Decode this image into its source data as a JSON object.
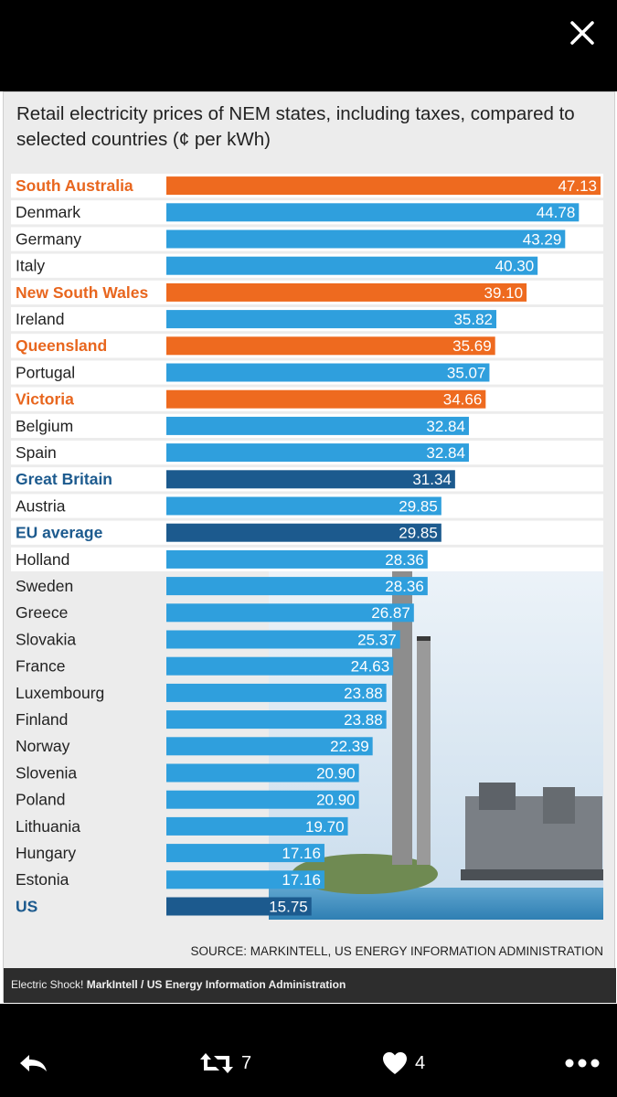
{
  "toolbar": {
    "close_icon": "close-icon"
  },
  "colors": {
    "state": "#ee6a1f",
    "country": "#2f9fdd",
    "highlight": "#1c5a8e",
    "state_label": "#e8661e",
    "highlight_label": "#1c5a8e",
    "country_label": "#222222"
  },
  "chart_data": {
    "type": "bar",
    "orientation": "horizontal",
    "title": "Retail electricity prices of NEM states, including taxes, compared to selected countries (¢ per kWh)",
    "unit": "¢ per kWh",
    "xlim": [
      0,
      47.13
    ],
    "categories": [
      "South Australia",
      "Denmark",
      "Germany",
      "Italy",
      "New South Wales",
      "Ireland",
      "Queensland",
      "Portugal",
      "Victoria",
      "Belgium",
      "Spain",
      "Great Britain",
      "Austria",
      "EU average",
      "Holland",
      "Sweden",
      "Greece",
      "Slovakia",
      "France",
      "Luxembourg",
      "Finland",
      "Norway",
      "Slovenia",
      "Poland",
      "Lithuania",
      "Hungary",
      "Estonia",
      "US"
    ],
    "values": [
      47.13,
      44.78,
      43.29,
      40.3,
      39.1,
      35.82,
      35.69,
      35.07,
      34.66,
      32.84,
      32.84,
      31.34,
      29.85,
      29.85,
      28.36,
      28.36,
      26.87,
      25.37,
      24.63,
      23.88,
      23.88,
      22.39,
      20.9,
      20.9,
      19.7,
      17.16,
      17.16,
      15.75
    ],
    "value_labels": [
      "47.13",
      "44.78",
      "43.29",
      "40.30",
      "39.10",
      "35.82",
      "35.69",
      "35.07",
      "34.66",
      "32.84",
      "32.84",
      "31.34",
      "29.85",
      "29.85",
      "28.36",
      "28.36",
      "26.87",
      "25.37",
      "24.63",
      "23.88",
      "23.88",
      "22.39",
      "20.90",
      "20.90",
      "19.70",
      "17.16",
      "17.16",
      "15.75"
    ],
    "groups": [
      "state",
      "country",
      "country",
      "country",
      "state",
      "country",
      "state",
      "country",
      "state",
      "country",
      "country",
      "highlight",
      "country",
      "highlight",
      "country",
      "country",
      "country",
      "country",
      "country",
      "country",
      "country",
      "country",
      "country",
      "country",
      "country",
      "country",
      "country",
      "highlight"
    ],
    "source": "SOURCE: MARKINTELL, US ENERGY INFORMATION ADMINISTRATION"
  },
  "caption": {
    "prefix": "Electric Shock! ",
    "credit": "MarkIntell / US Energy Information Administration"
  },
  "actions": {
    "reply_icon": "reply-icon",
    "retweet_icon": "retweet-icon",
    "retweet_count": "7",
    "like_icon": "heart-icon",
    "like_count": "4",
    "more_icon": "more-icon"
  }
}
